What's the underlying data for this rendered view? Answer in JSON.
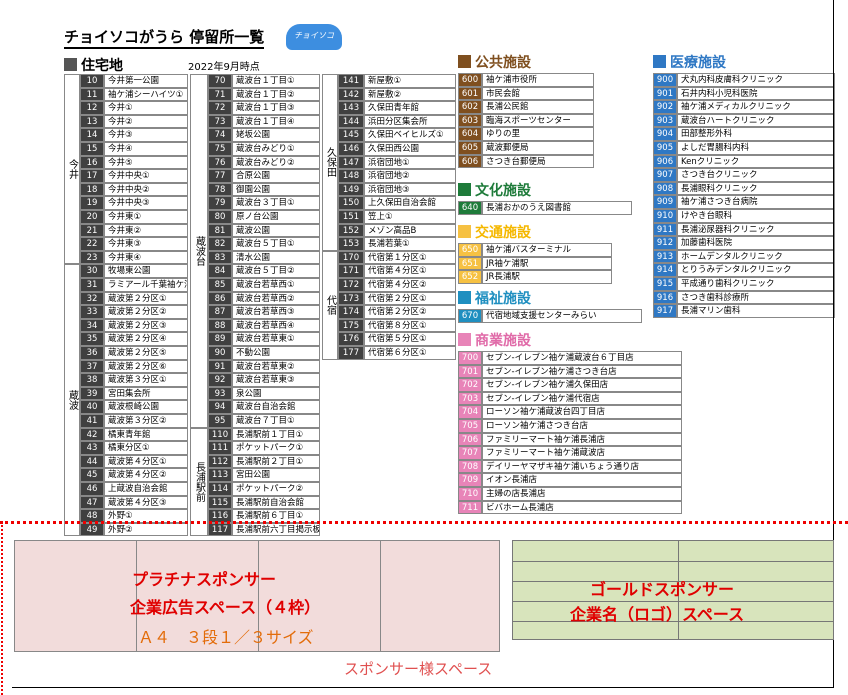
{
  "header": {
    "title": "チョイソコがうら 停留所一覧",
    "logo": "チョイソコ",
    "date": "2022年9月時点"
  },
  "residential": {
    "title": "住宅地",
    "columns": [
      [
        {
          "area": "今井",
          "rows": [
            [
              10,
              "今井第一公園"
            ],
            [
              11,
              "袖ケ浦シーハイツ①"
            ],
            [
              12,
              "今井①"
            ],
            [
              13,
              "今井②"
            ],
            [
              14,
              "今井③"
            ],
            [
              15,
              "今井④"
            ],
            [
              16,
              "今井⑤"
            ],
            [
              17,
              "今井中央①"
            ],
            [
              18,
              "今井中央②"
            ],
            [
              19,
              "今井中央③"
            ],
            [
              20,
              "今井東①"
            ],
            [
              21,
              "今井東②"
            ],
            [
              22,
              "今井東③"
            ],
            [
              23,
              "今井東④"
            ]
          ]
        },
        {
          "area": "蔵波",
          "rows": [
            [
              30,
              "牧場東公園"
            ],
            [
              31,
              "ラミアール千葉袖ケ浦"
            ],
            [
              32,
              "蔵波第２分区①"
            ],
            [
              33,
              "蔵波第２分区②"
            ],
            [
              34,
              "蔵波第２分区③"
            ],
            [
              35,
              "蔵波第２分区④"
            ],
            [
              36,
              "蔵波第２分区⑤"
            ],
            [
              37,
              "蔵波第２分区⑥"
            ],
            [
              38,
              "蔵波第３分区①"
            ],
            [
              39,
              "宮田集会所"
            ],
            [
              40,
              "蔵波根崎公園"
            ],
            [
              41,
              "蔵波第３分区②"
            ],
            [
              42,
              "橘東青年館"
            ],
            [
              43,
              "橘東分区①"
            ],
            [
              44,
              "蔵波第４分区①"
            ],
            [
              45,
              "蔵波第４分区②"
            ],
            [
              46,
              "上蔵波自治会館"
            ],
            [
              47,
              "蔵波第４分区③"
            ],
            [
              48,
              "外野①"
            ],
            [
              49,
              "外野②"
            ]
          ]
        }
      ],
      [
        {
          "area": "蔵波台",
          "rows": [
            [
              70,
              "蔵波台１丁目①"
            ],
            [
              71,
              "蔵波台１丁目②"
            ],
            [
              72,
              "蔵波台１丁目③"
            ],
            [
              73,
              "蔵波台１丁目④"
            ],
            [
              74,
              "姥坂公園"
            ],
            [
              75,
              "蔵波台みどり①"
            ],
            [
              76,
              "蔵波台みどり②"
            ],
            [
              77,
              "合原公園"
            ],
            [
              78,
              "御園公園"
            ],
            [
              79,
              "蔵波台３丁目①"
            ],
            [
              80,
              "原ノ台公園"
            ],
            [
              81,
              "蔵波公園"
            ],
            [
              82,
              "蔵波台５丁目①"
            ],
            [
              83,
              "清水公園"
            ],
            [
              84,
              "蔵波台５丁目②"
            ],
            [
              85,
              "蔵波台若草西①"
            ],
            [
              86,
              "蔵波台若草西②"
            ],
            [
              87,
              "蔵波台若草西③"
            ],
            [
              88,
              "蔵波台若草西④"
            ],
            [
              89,
              "蔵波台若草東①"
            ],
            [
              90,
              "不動公園"
            ],
            [
              91,
              "蔵波台若草東②"
            ],
            [
              92,
              "蔵波台若草東③"
            ],
            [
              93,
              "泉公園"
            ],
            [
              94,
              "蔵波台自治会館"
            ],
            [
              95,
              "蔵波台７丁目①"
            ]
          ]
        },
        {
          "area": "長浦駅前",
          "rows": [
            [
              110,
              "長浦駅前１丁目①"
            ],
            [
              111,
              "ポケットパーク①"
            ],
            [
              112,
              "長浦駅前２丁目①"
            ],
            [
              113,
              "宮田公園"
            ],
            [
              114,
              "ポケットパーク②"
            ],
            [
              115,
              "長浦駅前自治会館"
            ],
            [
              116,
              "長浦駅前６丁目①"
            ],
            [
              117,
              "長浦駅前六丁目掲示板"
            ]
          ]
        }
      ],
      [
        {
          "area": "久保田",
          "rows": [
            [
              141,
              "新屋敷①"
            ],
            [
              142,
              "新屋敷②"
            ],
            [
              143,
              "久保田青年館"
            ],
            [
              144,
              "浜田分区集会所"
            ],
            [
              145,
              "久保田ベイヒルズ①"
            ],
            [
              146,
              "久保田西公園"
            ],
            [
              147,
              "浜宿団地①"
            ],
            [
              148,
              "浜宿団地②"
            ],
            [
              149,
              "浜宿団地③"
            ],
            [
              150,
              "上久保田自治会館"
            ],
            [
              151,
              "笠上①"
            ],
            [
              152,
              "メゾン高品B"
            ],
            [
              153,
              "長浦若葉①"
            ]
          ]
        },
        {
          "area": "代宿",
          "rows": [
            [
              170,
              "代宿第１分区①"
            ],
            [
              171,
              "代宿第４分区①"
            ],
            [
              172,
              "代宿第４分区②"
            ],
            [
              173,
              "代宿第２分区①"
            ],
            [
              174,
              "代宿第２分区②"
            ],
            [
              175,
              "代宿第８分区①"
            ],
            [
              176,
              "代宿第５分区①"
            ],
            [
              177,
              "代宿第６分区①"
            ]
          ]
        }
      ]
    ]
  },
  "facilities": [
    {
      "title": "公共施設",
      "rows": [
        [
          600,
          "袖ケ浦市役所"
        ],
        [
          601,
          "市民会館"
        ],
        [
          602,
          "長浦公民館"
        ],
        [
          603,
          "臨海スポーツセンター"
        ],
        [
          604,
          "ゆりの里"
        ],
        [
          605,
          "蔵波郵便局"
        ],
        [
          606,
          "さつき台郵便局"
        ]
      ]
    },
    {
      "title": "文化施設",
      "rows": [
        [
          640,
          "長浦おかのうえ図書館"
        ]
      ]
    },
    {
      "title": "交通施設",
      "rows": [
        [
          650,
          "袖ケ浦バスターミナル"
        ],
        [
          651,
          "JR袖ケ浦駅"
        ],
        [
          652,
          "JR長浦駅"
        ]
      ]
    },
    {
      "title": "福祉施設",
      "rows": [
        [
          670,
          "代宿地域支援センターみらい"
        ]
      ]
    },
    {
      "title": "商業施設",
      "rows": [
        [
          700,
          "セブン-イレブン袖ケ浦蔵波台６丁目店"
        ],
        [
          701,
          "セブン-イレブン袖ケ浦さつき台店"
        ],
        [
          702,
          "セブン-イレブン袖ケ浦久保田店"
        ],
        [
          703,
          "セブン-イレブン袖ケ浦代宿店"
        ],
        [
          704,
          "ローソン袖ケ浦蔵波台四丁目店"
        ],
        [
          705,
          "ローソン袖ケ浦さつき台店"
        ],
        [
          706,
          "ファミリーマート袖ケ浦長浦店"
        ],
        [
          707,
          "ファミリーマート袖ケ浦蔵波店"
        ],
        [
          708,
          "デイリーヤマザキ袖ケ浦いちょう通り店"
        ],
        [
          709,
          "イオン長浦店"
        ],
        [
          710,
          "主婦の店長浦店"
        ],
        [
          711,
          "ビバホーム長浦店"
        ]
      ]
    },
    {
      "title": "医療施設",
      "rows": [
        [
          900,
          "犬丸内科皮膚科クリニック"
        ],
        [
          901,
          "石井内科小児科医院"
        ],
        [
          902,
          "袖ケ浦メディカルクリニック"
        ],
        [
          903,
          "蔵波台ハートクリニック"
        ],
        [
          904,
          "田部整形外科"
        ],
        [
          905,
          "よしだ胃腸科内科"
        ],
        [
          906,
          "Kenクリニック"
        ],
        [
          907,
          "さつき台クリニック"
        ],
        [
          908,
          "長浦眼科クリニック"
        ],
        [
          909,
          "袖ケ浦さつき台病院"
        ],
        [
          910,
          "けやき台眼科"
        ],
        [
          911,
          "長浦泌尿器科クリニック"
        ],
        [
          912,
          "加藤歯科医院"
        ],
        [
          913,
          "ホームデンタルクリニック"
        ],
        [
          914,
          "とりうみデンタルクリニック"
        ],
        [
          915,
          "平成通り歯科クリニック"
        ],
        [
          916,
          "さつき歯科診療所"
        ],
        [
          917,
          "長浦マリン歯科"
        ]
      ]
    }
  ],
  "sponsor": {
    "platinum": "プラチナスポンサー",
    "platinum_space": "企業広告スペース（４枠）",
    "platinum_size": "Ａ４　３段１／３サイズ",
    "gold": "ゴールドスポンサー",
    "gold_space": "企業名（ロゴ）スペース",
    "footer": "スポンサー様スペース"
  }
}
